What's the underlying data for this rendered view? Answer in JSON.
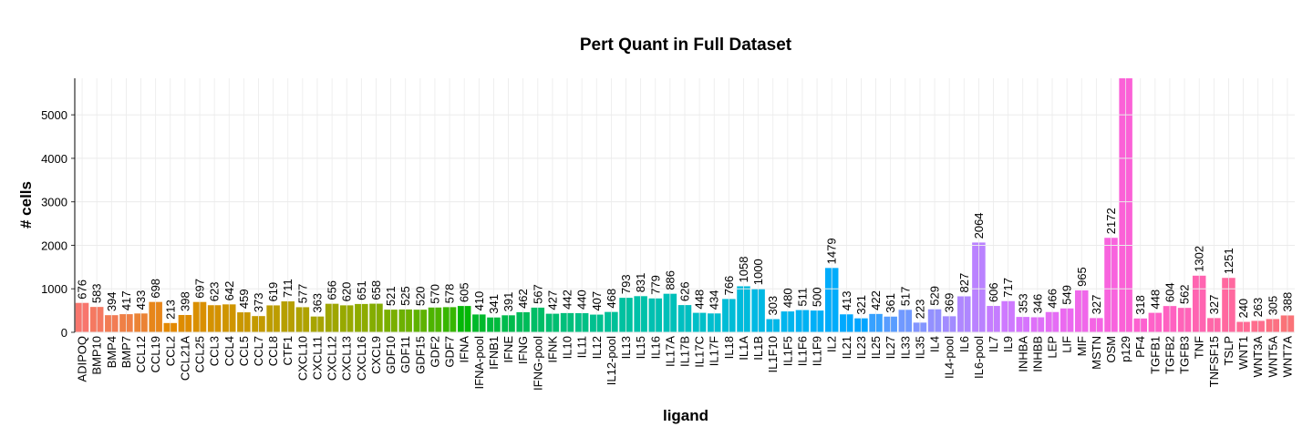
{
  "chart_data": {
    "type": "bar",
    "title": "Pert Quant in Full Dataset",
    "x_label": "ligand",
    "y_label": "# cells",
    "categories": [
      "ADIPOQ",
      "BMP10",
      "BMP4",
      "BMP7",
      "CCL12",
      "CCL19",
      "CCL2",
      "CCL21A",
      "CCL25",
      "CCL3",
      "CCL4",
      "CCL5",
      "CCL7",
      "CCL8",
      "CTF1",
      "CXCL10",
      "CXCL11",
      "CXCL12",
      "CXCL13",
      "CXCL16",
      "CXCL9",
      "GDF10",
      "GDF11",
      "GDF15",
      "GDF2",
      "GDF7",
      "IFNA",
      "IFNA-pool",
      "IFNB1",
      "IFNE",
      "IFNG",
      "IFNG-pool",
      "IFNK",
      "IL10",
      "IL11",
      "IL12",
      "IL12-pool",
      "IL13",
      "IL15",
      "IL16",
      "IL17A",
      "IL17B",
      "IL17C",
      "IL17F",
      "IL18",
      "IL1A",
      "IL1B",
      "IL1F10",
      "IL1F5",
      "IL1F6",
      "IL1F9",
      "IL2",
      "IL21",
      "IL23",
      "IL25",
      "IL27",
      "IL33",
      "IL35",
      "IL4",
      "IL4-pool",
      "IL6",
      "IL6-pool",
      "IL7",
      "IL9",
      "INHBA",
      "INHBB",
      "LEP",
      "LIF",
      "MIF",
      "MSTN",
      "OSM",
      "p129",
      "PF4",
      "TGFB1",
      "TGFB2",
      "TGFB3",
      "TNF",
      "TNFSF15",
      "TSLP",
      "WNT1",
      "WNT3A",
      "WNT5A",
      "WNT7A"
    ],
    "values": [
      676,
      583,
      394,
      417,
      433,
      698,
      213,
      398,
      697,
      623,
      642,
      459,
      373,
      619,
      711,
      577,
      363,
      656,
      620,
      651,
      658,
      521,
      525,
      520,
      570,
      578,
      605,
      410,
      341,
      391,
      462,
      567,
      427,
      442,
      440,
      407,
      468,
      793,
      831,
      779,
      886,
      626,
      448,
      434,
      766,
      1058,
      1000,
      303,
      480,
      511,
      500,
      1479,
      413,
      321,
      422,
      361,
      517,
      223,
      529,
      369,
      827,
      2064,
      606,
      717,
      353,
      346,
      466,
      549,
      965,
      327,
      2172,
      5900,
      318,
      448,
      604,
      562,
      1302,
      327,
      1251,
      240,
      263,
      305,
      388
    ],
    "ylim": [
      0,
      5840
    ],
    "yticks": [
      0,
      1000,
      2000,
      3000,
      4000,
      5000
    ],
    "grid": true
  }
}
